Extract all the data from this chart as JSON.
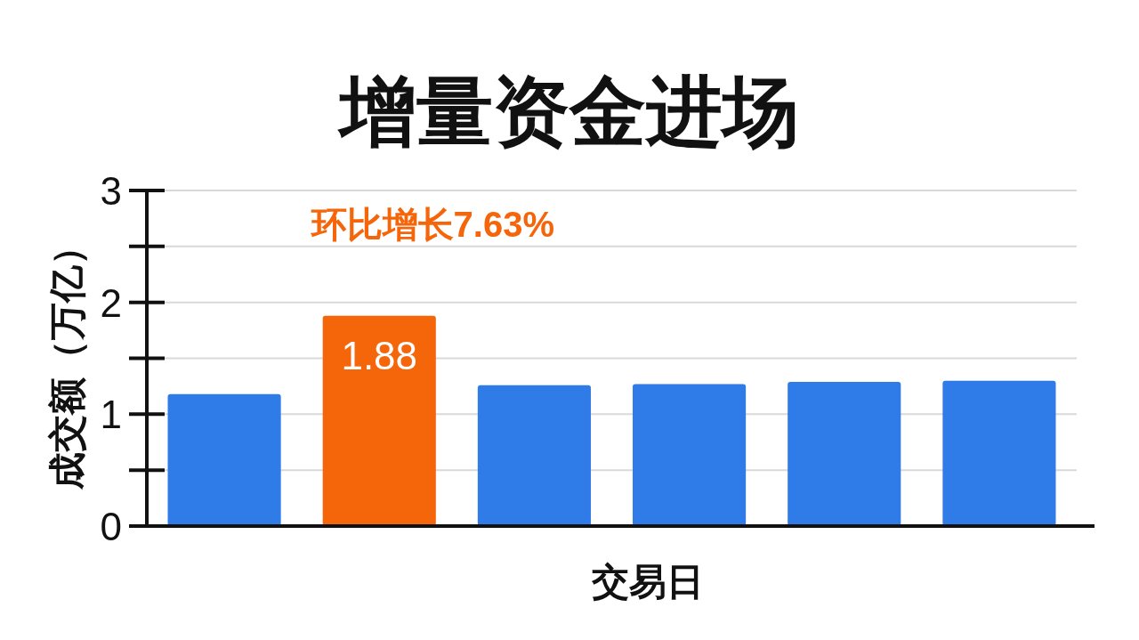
{
  "chart_data": {
    "type": "bar",
    "title": "增量资金进场",
    "xlabel": "交易日",
    "ylabel": "成交额（万亿）",
    "categories": [
      null,
      null,
      null,
      null,
      null,
      null
    ],
    "values": [
      1.18,
      1.88,
      1.26,
      1.27,
      1.29,
      1.3
    ],
    "colors": [
      "#2f7be8",
      "#f5650a",
      "#2f7be8",
      "#2f7be8",
      "#2f7be8",
      "#2f7be8"
    ],
    "value_labels": [
      null,
      "1.88",
      null,
      null,
      null,
      null
    ],
    "annotations": [
      "环比增长7.63%"
    ],
    "ylim": [
      0,
      3
    ],
    "yticks": [
      0,
      {
        "value": 0.5,
        "label": null
      },
      1,
      {
        "value": 1.5,
        "label": null
      },
      2,
      {
        "value": 2.5,
        "label": null
      },
      3
    ],
    "grid": "y"
  }
}
